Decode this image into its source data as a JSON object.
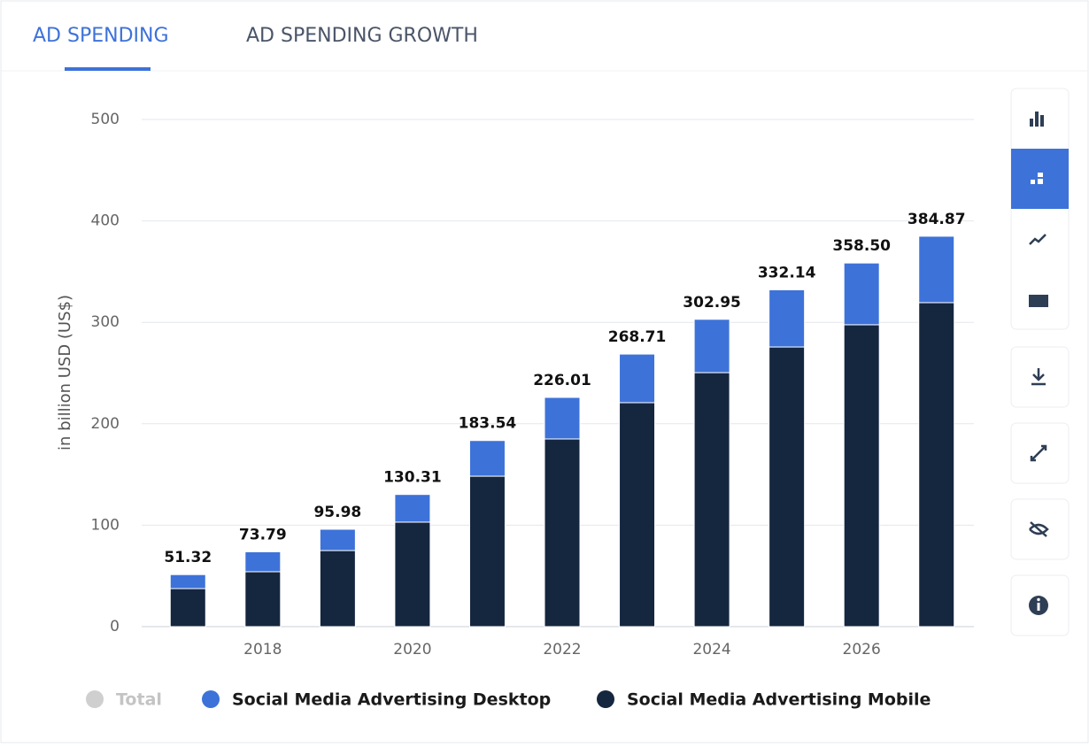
{
  "tabs": [
    "AD SPENDING",
    "AD SPENDING GROWTH"
  ],
  "chart_data": {
    "type": "stacked-bar",
    "y_label": "in billion USD (US$)",
    "categories": [
      null,
      "2018",
      null,
      "2020",
      null,
      "2022",
      null,
      "2024",
      null,
      "2026",
      null
    ],
    "series": [
      {
        "name": "Total",
        "color": "#cfcfcf",
        "visible": false,
        "values": [
          51.32,
          73.79,
          95.98,
          130.31,
          183.54,
          226.01,
          268.71,
          302.95,
          332.14,
          358.5,
          384.87
        ],
        "value_labels": [
          "51.32",
          "73.79",
          "95.98",
          "130.31",
          "183.54",
          "226.01",
          "268.71",
          "302.95",
          "332.14",
          "358.50",
          "384.87"
        ]
      },
      {
        "name": "Social Media Advertising Desktop",
        "color": "#3d72d9",
        "values": [
          13.8,
          19.7,
          21.0,
          27.3,
          35.2,
          41.0,
          47.9,
          52.6,
          56.4,
          60.9,
          65.5
        ]
      },
      {
        "name": "Social Media Advertising Mobile",
        "color": "#15263f",
        "values": [
          37.5,
          54.1,
          75.0,
          103.0,
          148.3,
          185.0,
          220.8,
          250.4,
          275.7,
          297.6,
          319.4
        ]
      }
    ],
    "ylim": [
      0,
      500
    ],
    "yticks": [
      0,
      100,
      200,
      300,
      400,
      500
    ],
    "grid": true
  }
}
